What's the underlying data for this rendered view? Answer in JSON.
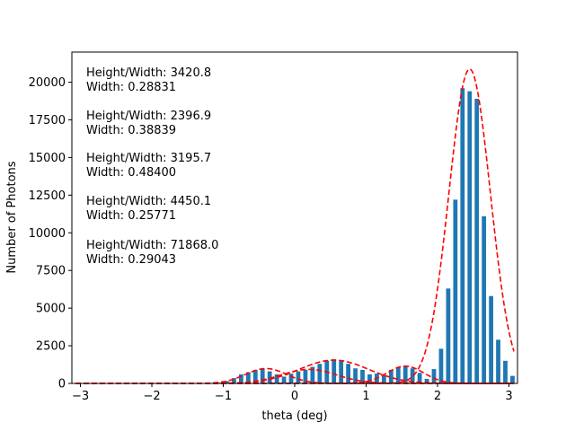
{
  "chart_data": {
    "type": "bar",
    "xlabel": "theta (deg)",
    "ylabel": "Number of Photons",
    "xlim": [
      -3.12,
      3.12
    ],
    "ylim": [
      0,
      22000
    ],
    "xticks": [
      -3,
      -2,
      -1,
      0,
      1,
      2,
      3
    ],
    "yticks": [
      0,
      2500,
      5000,
      7500,
      10000,
      12500,
      15000,
      17500,
      20000
    ],
    "xtick_labels": [
      "−3",
      "−2",
      "−1",
      "0",
      "1",
      "2",
      "3"
    ],
    "ytick_labels": [
      "0",
      "2500",
      "5000",
      "7500",
      "10000",
      "12500",
      "15000",
      "17500",
      "20000"
    ],
    "bar_color": "#1f77b4",
    "fit_color": "#ff0000",
    "annotations": [
      {
        "line1": "Height/Width: 3420.8",
        "line2": "Width: 0.28831"
      },
      {
        "line1": "Height/Width: 2396.9",
        "line2": "Width: 0.38839"
      },
      {
        "line1": "Height/Width: 3195.7",
        "line2": "Width: 0.48400"
      },
      {
        "line1": "Height/Width: 4450.1",
        "line2": "Width: 0.25771"
      },
      {
        "line1": "Height/Width: 71868.0",
        "line2": "Width: 0.29043"
      }
    ],
    "bins": {
      "x": [
        -3.05,
        -2.95,
        -2.85,
        -2.75,
        -2.65,
        -2.55,
        -2.45,
        -2.35,
        -2.25,
        -2.15,
        -2.05,
        -1.95,
        -1.85,
        -1.75,
        -1.65,
        -1.55,
        -1.45,
        -1.35,
        -1.25,
        -1.15,
        -1.05,
        -0.95,
        -0.85,
        -0.75,
        -0.65,
        -0.55,
        -0.45,
        -0.35,
        -0.25,
        -0.15,
        -0.05,
        0.05,
        0.15,
        0.25,
        0.35,
        0.45,
        0.55,
        0.65,
        0.75,
        0.85,
        0.95,
        1.05,
        1.15,
        1.25,
        1.35,
        1.45,
        1.55,
        1.65,
        1.75,
        1.85,
        1.95,
        2.05,
        2.15,
        2.25,
        2.35,
        2.45,
        2.55,
        2.65,
        2.75,
        2.85,
        2.95,
        3.05
      ],
      "counts": [
        0,
        0,
        0,
        0,
        0,
        0,
        0,
        0,
        0,
        0,
        0,
        0,
        0,
        0,
        0,
        0,
        0,
        0,
        0,
        0,
        50,
        150,
        350,
        600,
        750,
        900,
        950,
        800,
        600,
        450,
        650,
        800,
        900,
        1100,
        1300,
        1500,
        1600,
        1500,
        1300,
        1000,
        900,
        600,
        650,
        550,
        900,
        1100,
        1150,
        1000,
        700,
        300,
        950,
        2300,
        6300,
        12200,
        19600,
        19400,
        18900,
        11100,
        5800,
        2900,
        1500,
        500
      ]
    },
    "fit_curves": [
      {
        "type": "gaussian",
        "amplitude": 986,
        "center": -0.4,
        "sigma": 0.288
      },
      {
        "type": "gaussian",
        "amplitude": 931,
        "center": 0.2,
        "sigma": 0.388
      },
      {
        "type": "gaussian",
        "amplitude": 1547,
        "center": 0.55,
        "sigma": 0.484
      },
      {
        "type": "gaussian",
        "amplitude": 1147,
        "center": 1.55,
        "sigma": 0.258
      },
      {
        "type": "gaussian",
        "amplitude": 20873,
        "center": 2.45,
        "sigma": 0.29
      }
    ]
  }
}
